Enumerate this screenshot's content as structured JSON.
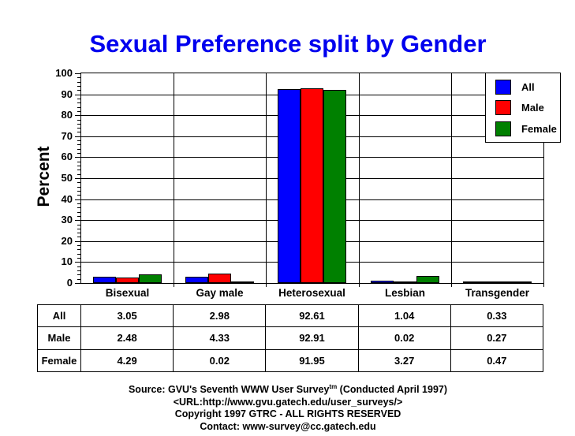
{
  "title": "Sexual Preference split by Gender",
  "colors": {
    "title_blue": "#0000ee",
    "axis_black": "#000000",
    "all_blue": "#0000ff",
    "male_red": "#ff0000",
    "female_green": "#008000"
  },
  "chart_data": {
    "type": "bar",
    "title": "Sexual Preference split by Gender",
    "xlabel": "",
    "ylabel": "Percent",
    "ylim": [
      0,
      100
    ],
    "ytick_step": 10,
    "minor_tick_step": 2,
    "grid": true,
    "legend_position": "top-right",
    "categories": [
      "Bisexual",
      "Gay male",
      "Heterosexual",
      "Lesbian",
      "Transgender"
    ],
    "series": [
      {
        "name": "All",
        "color": "#0000ff",
        "values": [
          3.05,
          2.98,
          92.61,
          1.04,
          0.33
        ]
      },
      {
        "name": "Male",
        "color": "#ff0000",
        "values": [
          2.48,
          4.33,
          92.91,
          0.02,
          0.27
        ]
      },
      {
        "name": "Female",
        "color": "#008000",
        "values": [
          4.29,
          0.02,
          91.95,
          3.27,
          0.47
        ]
      }
    ]
  },
  "table": {
    "row_labels": [
      "All",
      "Male",
      "Female"
    ],
    "column_headers": [
      "Bisexual",
      "Gay male",
      "Heterosexual",
      "Lesbian",
      "Transgender"
    ]
  },
  "footer": {
    "line1_prefix": "Source: GVU's Seventh WWW User Survey",
    "line1_sup": "tm",
    "line1_suffix": " (Conducted April 1997)",
    "line2": "<URL:http://www.gvu.gatech.edu/user_surveys/>",
    "line3": "Copyright 1997 GTRC - ALL RIGHTS RESERVED",
    "line4": "Contact: www-survey@cc.gatech.edu"
  }
}
